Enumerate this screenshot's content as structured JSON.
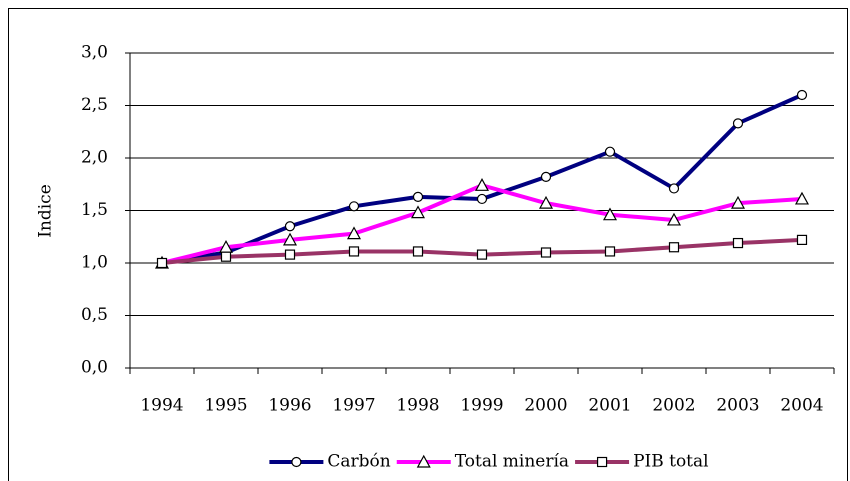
{
  "chart_data": {
    "type": "line",
    "y_label": "Indice",
    "categories": [
      "1994",
      "1995",
      "1996",
      "1997",
      "1998",
      "1999",
      "2000",
      "2001",
      "2002",
      "2003",
      "2004"
    ],
    "series": [
      {
        "name": "Carbón",
        "color": "#000080",
        "marker": "circle",
        "values": [
          1.0,
          1.1,
          1.35,
          1.54,
          1.63,
          1.61,
          1.82,
          2.06,
          1.71,
          2.33,
          2.6
        ]
      },
      {
        "name": "Total minería",
        "color": "#ff00ff",
        "marker": "triangle",
        "values": [
          1.0,
          1.15,
          1.22,
          1.28,
          1.48,
          1.74,
          1.57,
          1.46,
          1.41,
          1.57,
          1.61
        ]
      },
      {
        "name": "PIB total",
        "color": "#993366",
        "marker": "square",
        "values": [
          1.0,
          1.06,
          1.08,
          1.11,
          1.11,
          1.08,
          1.1,
          1.11,
          1.15,
          1.19,
          1.22
        ]
      }
    ],
    "ylim": [
      0,
      3
    ],
    "yticks": [
      {
        "value": 0,
        "label": "0,0"
      },
      {
        "value": 0.5,
        "label": "0,5"
      },
      {
        "value": 1,
        "label": "1,0"
      },
      {
        "value": 1.5,
        "label": "1,5"
      },
      {
        "value": 2,
        "label": "2,0"
      },
      {
        "value": 2.5,
        "label": "2,5"
      },
      {
        "value": 3,
        "label": "3,0"
      }
    ],
    "grid": true,
    "legend": "bottom"
  }
}
